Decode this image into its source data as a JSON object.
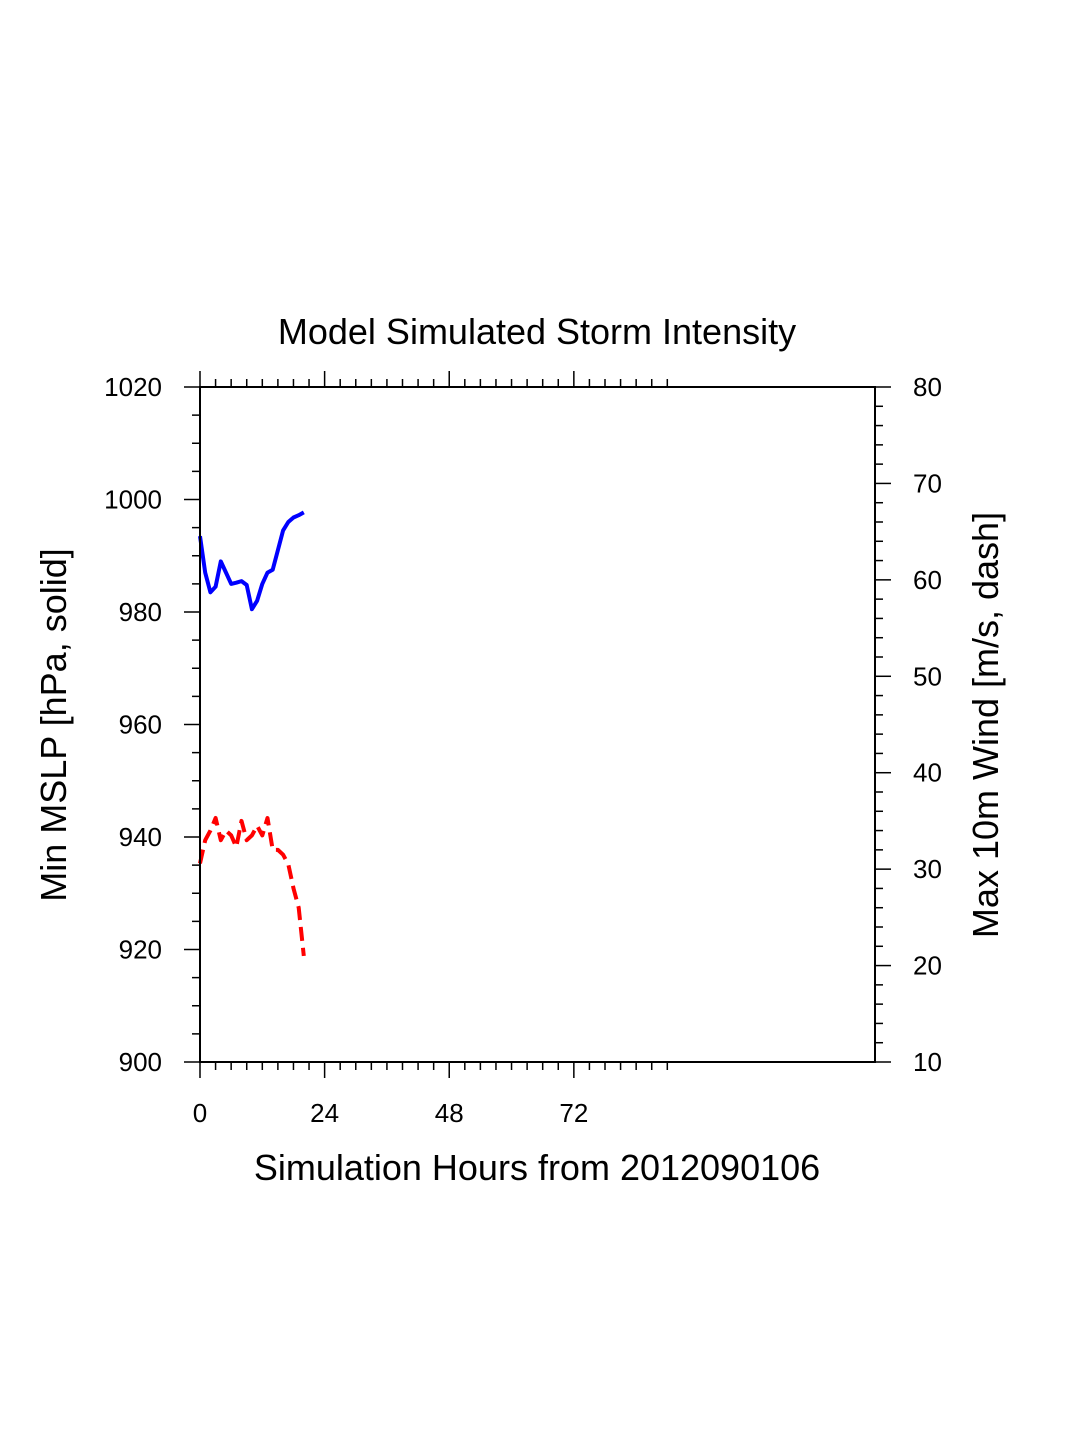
{
  "chart_data": {
    "type": "line",
    "title": "Model Simulated Storm Intensity",
    "xlabel": "Simulation Hours from 2012090106",
    "ylabel_left": "Min MSLP  [hPa, solid]",
    "ylabel_right": "Max 10m Wind  [m/s, dash]",
    "xlim": [
      0,
      130
    ],
    "ylim_left": [
      900,
      1020
    ],
    "ylim_right": [
      10,
      80
    ],
    "x_ticks": [
      0,
      24,
      48,
      72
    ],
    "x_tick_labels": [
      "0",
      "24",
      "48",
      "72"
    ],
    "x_minor_max": 90,
    "y_left_ticks": [
      900,
      920,
      940,
      960,
      980,
      1000,
      1020
    ],
    "y_left_tick_labels": [
      "900",
      "920",
      "940",
      "960",
      "980",
      "1000",
      "1020"
    ],
    "y_right_ticks": [
      10,
      20,
      30,
      40,
      50,
      60,
      70,
      80
    ],
    "y_right_tick_labels": [
      "10",
      "20",
      "30",
      "40",
      "50",
      "60",
      "70",
      "80"
    ],
    "colors": {
      "pressure": "#0000ff",
      "wind": "#ff0000",
      "axis": "#000000"
    },
    "series": [
      {
        "name": "Min MSLP",
        "axis": "left",
        "style": "solid",
        "x": [
          0,
          1,
          2,
          3,
          4,
          5,
          6,
          7,
          8,
          9,
          10,
          11,
          12,
          13,
          14,
          15,
          16,
          17,
          18,
          19,
          20
        ],
        "values": [
          993.5,
          987.0,
          983.5,
          984.5,
          989.0,
          987.0,
          985.0,
          985.2,
          985.5,
          984.8,
          980.5,
          982.0,
          985.0,
          987.0,
          987.5,
          991.0,
          994.5,
          996.0,
          996.8,
          997.2,
          997.7
        ]
      },
      {
        "name": "Max 10m Wind",
        "axis": "right",
        "style": "dash",
        "x": [
          0,
          1,
          2,
          3,
          4,
          5,
          6,
          7,
          8,
          9,
          10,
          11,
          12,
          13,
          14,
          15,
          16,
          17,
          18,
          19,
          20
        ],
        "values": [
          30.6,
          33.0,
          34.0,
          35.3,
          33.0,
          34.0,
          33.5,
          32.3,
          35.0,
          33.0,
          33.5,
          34.5,
          33.5,
          35.3,
          32.0,
          32.0,
          31.5,
          30.5,
          28.0,
          26.0,
          21.0
        ]
      }
    ]
  }
}
